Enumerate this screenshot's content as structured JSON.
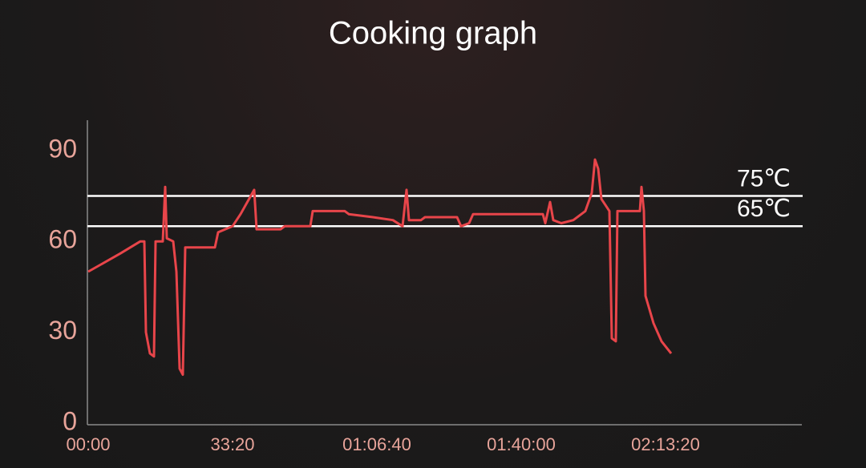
{
  "chart_data": {
    "type": "line",
    "title": "Cooking graph",
    "x": [
      0,
      222,
      444,
      722,
      778,
      800,
      856,
      911,
      933,
      1033,
      1067,
      1089,
      1178,
      1222,
      1267,
      1311,
      1344,
      1756,
      1800,
      2000,
      2111,
      2300,
      2333,
      2667,
      2722,
      3078,
      3111,
      3556,
      3611,
      3944,
      4222,
      4356,
      4411,
      4444,
      4611,
      4667,
      5111,
      5167,
      5278,
      5333,
      6300,
      6333,
      6400,
      6444,
      6556,
      6722,
      6889,
      6978,
      7022,
      7067,
      7111,
      7167,
      7222,
      7256,
      7311,
      7333,
      7644,
      7667,
      7700,
      7722,
      7833,
      7944,
      8078
    ],
    "series": [
      {
        "color": "#e8454a",
        "values": [
          50,
          53,
          56,
          60,
          60,
          30,
          23,
          22,
          60,
          60,
          78,
          61,
          60,
          50,
          18,
          16,
          58,
          58,
          63,
          65,
          69,
          77,
          64,
          64,
          65,
          65,
          70,
          70,
          69,
          68,
          67,
          65,
          77,
          67,
          67,
          68,
          68,
          65,
          66,
          69,
          69,
          66,
          73,
          67,
          66,
          67,
          70,
          76,
          87,
          84,
          74,
          72,
          70,
          28,
          27,
          70,
          70,
          78,
          70,
          42,
          33,
          27,
          23
        ]
      }
    ],
    "xlim": [
      0,
      9900
    ],
    "ylim": [
      0,
      100
    ],
    "xticks": [
      {
        "value": 0,
        "label": "00:00"
      },
      {
        "value": 2000,
        "label": "33:20"
      },
      {
        "value": 4000,
        "label": "01:06:40"
      },
      {
        "value": 6000,
        "label": "01:40:00"
      },
      {
        "value": 8000,
        "label": "02:13:20"
      }
    ],
    "yticks": [
      0,
      30,
      60,
      90
    ],
    "reference_lines": [
      {
        "value": 75,
        "label": "75℃"
      },
      {
        "value": 65,
        "label": "65℃"
      }
    ]
  }
}
